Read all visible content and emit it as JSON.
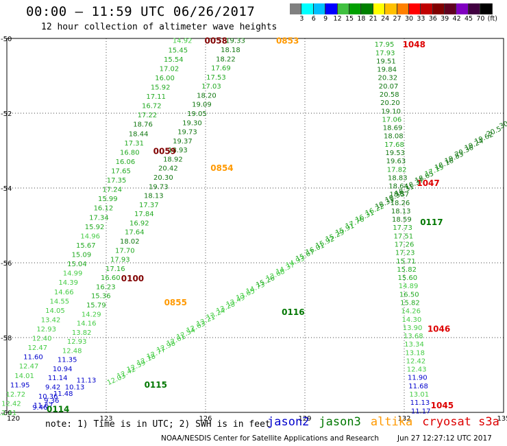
{
  "title": "00:00 – 11:59 UTC 06/26/2017",
  "subtitle": "12 hour collection of altimeter wave heights",
  "colorbar": {
    "colors": [
      "#808080",
      "#00ffff",
      "#00c0ff",
      "#0000ff",
      "#40c040",
      "#00a000",
      "#008000",
      "#ffff00",
      "#ffc000",
      "#ff8000",
      "#ff0000",
      "#c00000",
      "#800000",
      "#600020",
      "#8000c0",
      "#400040",
      "#000000"
    ],
    "labels": [
      "3",
      "6",
      "9",
      "12",
      "15",
      "18",
      "21",
      "24",
      "27",
      "30",
      "33",
      "36",
      "39",
      "42",
      "45",
      "70",
      "(ft)"
    ]
  },
  "map": {
    "lon_ticks": [
      "120",
      "123",
      "126",
      "129",
      "132",
      "135"
    ],
    "lat_ticks": [
      "-50",
      "-52",
      "-54",
      "-56",
      "-58",
      "-60"
    ]
  },
  "note": "note: 1) Time is in UTC; 2) SWH is in feet",
  "legend": [
    {
      "label": "jason2",
      "color": "#0000cc"
    },
    {
      "label": "jason3",
      "color": "#007700"
    },
    {
      "label": "altika",
      "color": "#ff9900"
    },
    {
      "label": "cryosat s3a",
      "color": "#dd0000"
    }
  ],
  "credit": "NOAA/NESDIS Center for Satellite Applications and Research",
  "timestamp": "Jun 27 12:27:12 UTC 2017",
  "tracks": [
    {
      "time": "0058",
      "lon": 125.97,
      "lat": -50.05,
      "color": "#800000",
      "values": [
        "14.92",
        "15.45",
        "15.54",
        "17.02",
        "16.00",
        "15.92",
        "17.11",
        "16.72",
        "17.22",
        "18.76",
        "18.44",
        "17.31",
        "16.80",
        "16.06",
        "17.65",
        "17.35",
        "17.24",
        "15.99",
        "16.12",
        "17.34",
        "15.92",
        "14.96",
        "15.67",
        "15.09",
        "15.04",
        "14.99",
        "14.39",
        "14.66",
        "14.55",
        "14.05",
        "13.42",
        "12.93",
        "12.40",
        "12.47",
        "11.60",
        "12.47",
        "14.01",
        "11.95",
        "12.72",
        "12.42",
        "12.41"
      ]
    },
    {
      "time": "0059",
      "lon": 124.42,
      "lat": -53.0,
      "color": "#800000",
      "values": [
        "19.33",
        "18.18",
        "18.22",
        "17.69",
        "17.53",
        "17.03",
        "18.20",
        "19.09",
        "19.05",
        "19.30",
        "19.73",
        "19.37",
        "18.93",
        "18.92",
        "20.42",
        "20.30",
        "19.73",
        "18.13",
        "17.37",
        "17.84",
        "16.92",
        "17.64",
        "18.02",
        "17.70",
        "17.93",
        "17.16",
        "16.60",
        "16.23",
        "15.36",
        "15.79",
        "14.29",
        "14.16",
        "13.82",
        "12.93",
        "12.48",
        "11.35",
        "10.94",
        "11.14",
        "9.42",
        "10.36",
        "11.67"
      ]
    },
    {
      "time": "0100",
      "lon": 123.45,
      "lat": -56.4,
      "color": "#800000",
      "values": []
    },
    {
      "time": "0853",
      "lon": 128.13,
      "lat": -50.05,
      "color": "#ff9900",
      "values": []
    },
    {
      "time": "0854",
      "lon": 126.15,
      "lat": -53.45,
      "color": "#ff9900",
      "values": []
    },
    {
      "time": "0855",
      "lon": 124.75,
      "lat": -57.05,
      "color": "#ff9900",
      "values": []
    },
    {
      "time": "1048",
      "lon": 131.95,
      "lat": -50.15,
      "color": "#dd0000",
      "values": [
        "17.95",
        "17.93",
        "19.51",
        "19.84",
        "20.32",
        "20.07",
        "20.58",
        "20.20",
        "19.10",
        "17.06",
        "18.69",
        "18.08",
        "17.68",
        "19.53",
        "19.63",
        "17.82",
        "18.83",
        "18.64",
        "18.57",
        "18.26",
        "18.13",
        "18.59",
        "17.73",
        "17.51",
        "17.26",
        "17.23",
        "15.71",
        "15.82",
        "15.60",
        "14.89",
        "16.50",
        "15.82",
        "14.26",
        "14.30",
        "13.90",
        "13.68",
        "13.34",
        "13.18",
        "12.42",
        "12.43",
        "11.90",
        "11.68",
        "13.01",
        "11.13",
        "11.17"
      ]
    },
    {
      "time": "1047",
      "lon": 132.38,
      "lat": -53.85,
      "color": "#dd0000",
      "values": []
    },
    {
      "time": "1046",
      "lon": 132.7,
      "lat": -57.75,
      "color": "#dd0000",
      "values": []
    },
    {
      "time": "1045",
      "lon": 132.8,
      "lat": -59.8,
      "color": "#dd0000",
      "values": []
    },
    {
      "time": "0115",
      "lon": 124.15,
      "lat": -59.25,
      "color": "#007700",
      "values": []
    },
    {
      "time": "0116",
      "lon": 128.3,
      "lat": -57.3,
      "color": "#007700",
      "values": []
    },
    {
      "time": "0117",
      "lon": 132.48,
      "lat": -54.9,
      "color": "#007700",
      "values": []
    },
    {
      "time": "0114",
      "lon": 121.2,
      "lat": -59.9,
      "color": "#007700",
      "values": []
    }
  ],
  "diagonal_values": [
    "12.03",
    "12.42",
    "12.59",
    "12.18",
    "12.77",
    "12.98",
    "12.61",
    "12.54",
    "12.63",
    "13.21",
    "13.24",
    "13.28",
    "13.49",
    "13.65",
    "14.73",
    "15.26",
    "13.68",
    "14.37",
    "14.93",
    "15.67",
    "16.01",
    "15.92",
    "15.29",
    "15.91",
    "17.76",
    "16.31",
    "16.22",
    "18.33",
    "18.38",
    "18.31",
    "18.37",
    "18.65",
    "17.15",
    "18.16",
    "19.83",
    "20.36",
    "19.24",
    "19.62",
    "20.5",
    "30"
  ],
  "jason2_values": [
    "9.46",
    "9.36",
    "11.48",
    "10.13",
    "11.13"
  ]
}
